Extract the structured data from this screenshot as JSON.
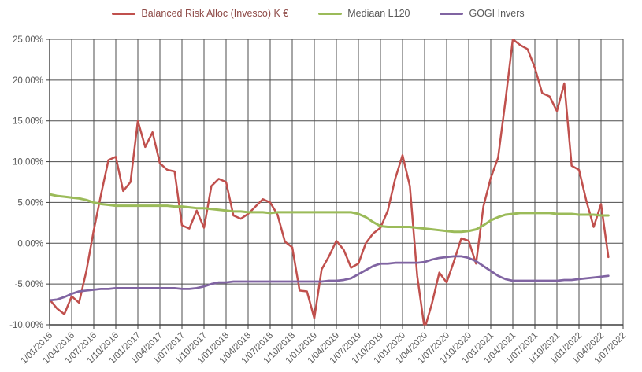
{
  "chart_data": {
    "type": "line",
    "title": "",
    "grid": true,
    "legend_position": "top",
    "axis_label_color": "#595959",
    "gridline_color": "#4d4d4d",
    "axis_line_color": "#3f3f3f",
    "background": "#ffffff",
    "ylim": [
      -10,
      25
    ],
    "y_tick_step": 5,
    "y_tick_labels": [
      "25,00%",
      "20,00%",
      "15,00%",
      "10,00%",
      "5,00%",
      "0,00%",
      "-5,00%",
      "-10,00%"
    ],
    "y_tick_values": [
      25,
      20,
      15,
      10,
      5,
      0,
      -5,
      -10
    ],
    "x_tick_labels": [
      "1/01/2016",
      "1/04/2016",
      "1/07/2016",
      "1/10/2016",
      "1/01/2017",
      "1/04/2017",
      "1/07/2017",
      "1/10/2017",
      "1/01/2018",
      "1/04/2018",
      "1/07/2018",
      "1/10/2018",
      "1/01/2019",
      "1/04/2019",
      "1/07/2019",
      "1/10/2019",
      "1/01/2020",
      "1/04/2020",
      "1/07/2020",
      "1/10/2020",
      "1/01/2021",
      "1/04/2021",
      "1/07/2021",
      "1/10/2021",
      "1/01/2022",
      "1/04/2022",
      "1/07/2022"
    ],
    "x_months_total": 78,
    "x_tick_interval_months": 3,
    "series": [
      {
        "id": "balanced-risk-alloc",
        "name": "Balanced Risk Alloc (Invesco) K €",
        "color": "#C0504D",
        "label_color": "#8E4A47",
        "line_width": 2.5,
        "start_month": "1/01/2016",
        "values": [
          -6.9,
          -8.0,
          -8.7,
          -6.5,
          -7.3,
          -3.4,
          1.6,
          6.0,
          10.2,
          10.6,
          6.4,
          7.5,
          15.0,
          11.8,
          13.6,
          9.8,
          9.0,
          8.8,
          2.2,
          1.8,
          4.0,
          1.9,
          7.0,
          7.9,
          7.5,
          3.4,
          3.0,
          3.6,
          4.5,
          5.4,
          5.0,
          3.5,
          0.2,
          -0.5,
          -5.8,
          -5.9,
          -9.2,
          -3.2,
          -1.6,
          0.3,
          -0.8,
          -3.0,
          -2.5,
          0.0,
          1.2,
          1.9,
          4.0,
          7.9,
          10.8,
          7.0,
          -4.0,
          -10.5,
          -7.4,
          -3.6,
          -4.8,
          -2.2,
          0.6,
          0.3,
          -2.5,
          4.5,
          8.0,
          10.5,
          17.5,
          25.0,
          24.3,
          23.8,
          21.5,
          18.4,
          18.0,
          16.2,
          19.6,
          9.5,
          9.0,
          5.2,
          2.0,
          4.8,
          -1.7
        ]
      },
      {
        "id": "mediaan-l120",
        "name": "Mediaan L120",
        "color": "#9BBB59",
        "label_color": "#595959",
        "line_width": 3,
        "start_month": "1/01/2016",
        "values": [
          6.0,
          5.8,
          5.7,
          5.6,
          5.5,
          5.3,
          5.0,
          4.8,
          4.7,
          4.6,
          4.6,
          4.6,
          4.6,
          4.6,
          4.6,
          4.6,
          4.6,
          4.5,
          4.5,
          4.4,
          4.3,
          4.3,
          4.2,
          4.1,
          4.0,
          3.9,
          3.9,
          3.8,
          3.8,
          3.8,
          3.7,
          3.8,
          3.8,
          3.8,
          3.8,
          3.8,
          3.8,
          3.8,
          3.8,
          3.8,
          3.8,
          3.8,
          3.6,
          3.2,
          2.6,
          2.1,
          2.0,
          2.0,
          2.0,
          2.0,
          1.9,
          1.8,
          1.7,
          1.6,
          1.5,
          1.4,
          1.4,
          1.5,
          1.7,
          2.2,
          2.8,
          3.2,
          3.5,
          3.6,
          3.7,
          3.7,
          3.7,
          3.7,
          3.7,
          3.6,
          3.6,
          3.6,
          3.5,
          3.5,
          3.5,
          3.4,
          3.4
        ]
      },
      {
        "id": "gogi-invers",
        "name": "GOGI Invers",
        "color": "#8064A2",
        "label_color": "#595959",
        "line_width": 2.75,
        "start_month": "1/01/2016",
        "values": [
          -7.0,
          -6.9,
          -6.6,
          -6.2,
          -5.9,
          -5.8,
          -5.7,
          -5.6,
          -5.6,
          -5.5,
          -5.5,
          -5.5,
          -5.5,
          -5.5,
          -5.5,
          -5.5,
          -5.5,
          -5.5,
          -5.6,
          -5.6,
          -5.5,
          -5.3,
          -5.0,
          -4.8,
          -4.8,
          -4.7,
          -4.7,
          -4.7,
          -4.7,
          -4.7,
          -4.7,
          -4.7,
          -4.7,
          -4.7,
          -4.7,
          -4.7,
          -4.7,
          -4.7,
          -4.6,
          -4.6,
          -4.5,
          -4.3,
          -3.8,
          -3.3,
          -2.8,
          -2.5,
          -2.5,
          -2.4,
          -2.4,
          -2.4,
          -2.4,
          -2.3,
          -2.0,
          -1.8,
          -1.7,
          -1.6,
          -1.6,
          -1.8,
          -2.2,
          -2.8,
          -3.4,
          -4.0,
          -4.4,
          -4.6,
          -4.6,
          -4.6,
          -4.6,
          -4.6,
          -4.6,
          -4.6,
          -4.5,
          -4.5,
          -4.4,
          -4.3,
          -4.2,
          -4.1,
          -4.0
        ]
      }
    ]
  }
}
